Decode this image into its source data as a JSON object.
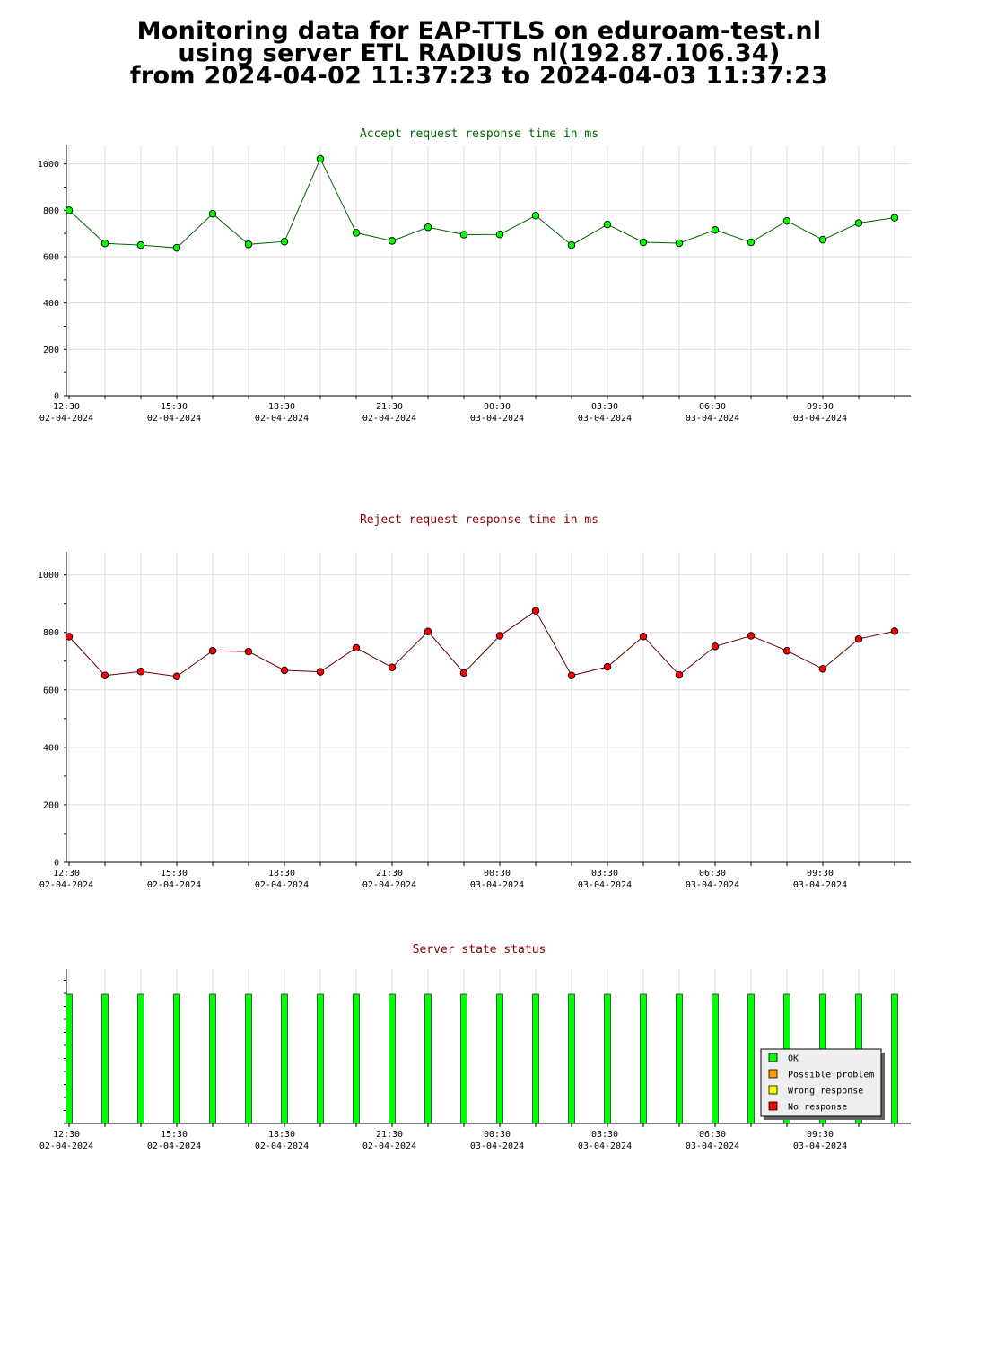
{
  "page": {
    "title_lines": [
      "Monitoring data for EAP-TTLS on eduroam-test.nl",
      "using server ETL RADIUS nl(192.87.106.34)",
      "from 2024-04-02 11:37:23 to 2024-04-03 11:37:23"
    ]
  },
  "colors": {
    "accept_title": "#006400",
    "reject_title": "#8b0000",
    "status_title": "#8b0000",
    "ok": "#00ff00",
    "possible_problem": "#ff9900",
    "wrong_response": "#ffff00",
    "no_response": "#ff0000",
    "grid": "#dddddd",
    "accept_line": "#006400",
    "reject_line": "#660000"
  },
  "chart_data": [
    {
      "type": "line",
      "title": "Accept request response time in ms",
      "x": [
        "12:30 02-04-2024",
        "13:30 02-04-2024",
        "14:30 02-04-2024",
        "15:30 02-04-2024",
        "16:30 02-04-2024",
        "17:30 02-04-2024",
        "18:30 02-04-2024",
        "19:30 02-04-2024",
        "20:30 02-04-2024",
        "21:30 02-04-2024",
        "22:30 02-04-2024",
        "23:30 02-04-2024",
        "00:30 03-04-2024",
        "01:30 03-04-2024",
        "02:30 03-04-2024",
        "03:30 03-04-2024",
        "04:30 03-04-2024",
        "05:30 03-04-2024",
        "06:30 03-04-2024",
        "07:30 03-04-2024",
        "08:30 03-04-2024",
        "09:30 03-04-2024",
        "10:30 03-04-2024",
        "11:30 03-04-2024"
      ],
      "values": [
        800,
        657,
        650,
        638,
        785,
        653,
        665,
        1022,
        703,
        668,
        727,
        695,
        696,
        777,
        650,
        739,
        662,
        658,
        715,
        662,
        754,
        673,
        745,
        768
      ],
      "x_tick_labels": [
        {
          "time": "12:30",
          "date": "02-04-2024"
        },
        {
          "time": "15:30",
          "date": "02-04-2024"
        },
        {
          "time": "18:30",
          "date": "02-04-2024"
        },
        {
          "time": "21:30",
          "date": "02-04-2024"
        },
        {
          "time": "00:30",
          "date": "03-04-2024"
        },
        {
          "time": "03:30",
          "date": "03-04-2024"
        },
        {
          "time": "06:30",
          "date": "03-04-2024"
        },
        {
          "time": "09:30",
          "date": "03-04-2024"
        }
      ],
      "y_ticks": [
        0,
        200,
        400,
        600,
        800,
        1000
      ],
      "ylim": [
        0,
        1080
      ],
      "grid": true,
      "marker_color": "#00ff00"
    },
    {
      "type": "line",
      "title": "Reject request response time in ms",
      "x": [
        "12:30 02-04-2024",
        "13:30 02-04-2024",
        "14:30 02-04-2024",
        "15:30 02-04-2024",
        "16:30 02-04-2024",
        "17:30 02-04-2024",
        "18:30 02-04-2024",
        "19:30 02-04-2024",
        "20:30 02-04-2024",
        "21:30 02-04-2024",
        "22:30 02-04-2024",
        "23:30 02-04-2024",
        "00:30 03-04-2024",
        "01:30 03-04-2024",
        "02:30 03-04-2024",
        "03:30 03-04-2024",
        "04:30 03-04-2024",
        "05:30 03-04-2024",
        "06:30 03-04-2024",
        "07:30 03-04-2024",
        "08:30 03-04-2024",
        "09:30 03-04-2024",
        "10:30 03-04-2024",
        "11:30 03-04-2024"
      ],
      "values": [
        785,
        650,
        664,
        647,
        736,
        733,
        668,
        663,
        746,
        678,
        803,
        659,
        788,
        875,
        650,
        680,
        786,
        652,
        751,
        788,
        736,
        673,
        777,
        804
      ],
      "x_tick_labels": [
        {
          "time": "12:30",
          "date": "02-04-2024"
        },
        {
          "time": "15:30",
          "date": "02-04-2024"
        },
        {
          "time": "18:30",
          "date": "02-04-2024"
        },
        {
          "time": "21:30",
          "date": "02-04-2024"
        },
        {
          "time": "00:30",
          "date": "03-04-2024"
        },
        {
          "time": "03:30",
          "date": "03-04-2024"
        },
        {
          "time": "06:30",
          "date": "03-04-2024"
        },
        {
          "time": "09:30",
          "date": "03-04-2024"
        }
      ],
      "y_ticks": [
        0,
        200,
        400,
        600,
        800,
        1000
      ],
      "ylim": [
        0,
        1080
      ],
      "grid": true,
      "marker_color": "#ff0000"
    },
    {
      "type": "bar",
      "title": "Server state status",
      "x": [
        "12:30 02-04-2024",
        "13:30 02-04-2024",
        "14:30 02-04-2024",
        "15:30 02-04-2024",
        "16:30 02-04-2024",
        "17:30 02-04-2024",
        "18:30 02-04-2024",
        "19:30 02-04-2024",
        "20:30 02-04-2024",
        "21:30 02-04-2024",
        "22:30 02-04-2024",
        "23:30 02-04-2024",
        "00:30 03-04-2024",
        "01:30 03-04-2024",
        "02:30 03-04-2024",
        "03:30 03-04-2024",
        "04:30 03-04-2024",
        "05:30 03-04-2024",
        "06:30 03-04-2024",
        "07:30 03-04-2024",
        "08:30 03-04-2024",
        "09:30 03-04-2024",
        "10:30 03-04-2024",
        "11:30 03-04-2024"
      ],
      "states": [
        "OK",
        "OK",
        "OK",
        "OK",
        "OK",
        "OK",
        "OK",
        "OK",
        "OK",
        "OK",
        "OK",
        "OK",
        "OK",
        "OK",
        "OK",
        "OK",
        "OK",
        "OK",
        "OK",
        "OK",
        "OK",
        "OK",
        "OK",
        "OK"
      ],
      "values": [
        1,
        1,
        1,
        1,
        1,
        1,
        1,
        1,
        1,
        1,
        1,
        1,
        1,
        1,
        1,
        1,
        1,
        1,
        1,
        1,
        1,
        1,
        1,
        1
      ],
      "x_tick_labels": [
        {
          "time": "12:30",
          "date": "02-04-2024"
        },
        {
          "time": "15:30",
          "date": "02-04-2024"
        },
        {
          "time": "18:30",
          "date": "02-04-2024"
        },
        {
          "time": "21:30",
          "date": "02-04-2024"
        },
        {
          "time": "00:30",
          "date": "03-04-2024"
        },
        {
          "time": "03:30",
          "date": "03-04-2024"
        },
        {
          "time": "06:30",
          "date": "03-04-2024"
        },
        {
          "time": "09:30",
          "date": "03-04-2024"
        }
      ],
      "legend": [
        {
          "label": "OK",
          "color": "#00ff00"
        },
        {
          "label": "Possible problem",
          "color": "#ff9900"
        },
        {
          "label": "Wrong response",
          "color": "#ffff00"
        },
        {
          "label": "No response",
          "color": "#ff0000"
        }
      ],
      "legend_position": "bottom-right",
      "grid": true
    }
  ]
}
